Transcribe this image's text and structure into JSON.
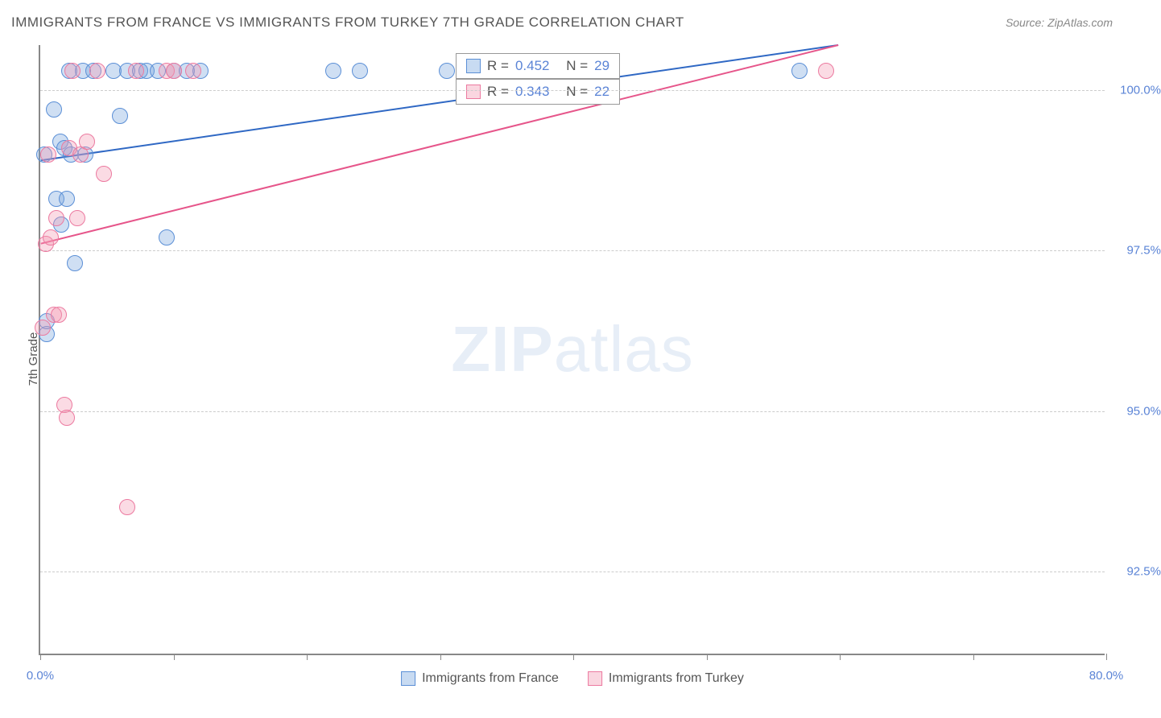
{
  "title": "IMMIGRANTS FROM FRANCE VS IMMIGRANTS FROM TURKEY 7TH GRADE CORRELATION CHART",
  "source": "Source: ZipAtlas.com",
  "ylabel": "7th Grade",
  "watermark_bold": "ZIP",
  "watermark_light": "atlas",
  "chart": {
    "type": "scatter-with-regression",
    "background": "#ffffff",
    "axis_color": "#888888",
    "grid_color": "#cccccc",
    "label_color": "#5b84d6",
    "text_color": "#555555",
    "title_fontsize": 17,
    "label_fontsize": 15,
    "tick_fontsize": 15,
    "xlim": [
      0,
      80
    ],
    "ylim": [
      91.2,
      100.7
    ],
    "y_gridlines": [
      92.5,
      95.0,
      97.5,
      100.0
    ],
    "y_tick_labels": [
      "92.5%",
      "95.0%",
      "97.5%",
      "100.0%"
    ],
    "x_ticks": [
      0,
      10,
      20,
      30,
      40,
      50,
      60,
      70,
      80
    ],
    "x_tick_labels": {
      "0": "0.0%",
      "80": "80.0%"
    },
    "marker_radius": 10,
    "series": [
      {
        "name": "Immigrants from France",
        "color_fill": "rgba(118,164,222,0.35)",
        "color_stroke": "#5b8fd6",
        "line_color": "#2f68c4",
        "line_width": 2,
        "R": 0.452,
        "N": 29,
        "regression": {
          "x1": 0,
          "y1": 98.9,
          "x2": 60,
          "y2": 100.7
        },
        "points": [
          {
            "x": 0.3,
            "y": 99.0
          },
          {
            "x": 0.5,
            "y": 96.2
          },
          {
            "x": 0.5,
            "y": 96.4
          },
          {
            "x": 1.0,
            "y": 99.7
          },
          {
            "x": 1.2,
            "y": 98.3
          },
          {
            "x": 1.5,
            "y": 99.2
          },
          {
            "x": 1.6,
            "y": 97.9
          },
          {
            "x": 1.8,
            "y": 99.1
          },
          {
            "x": 2.0,
            "y": 98.3
          },
          {
            "x": 2.2,
            "y": 100.3
          },
          {
            "x": 2.3,
            "y": 99.0
          },
          {
            "x": 2.6,
            "y": 97.3
          },
          {
            "x": 3.2,
            "y": 100.3
          },
          {
            "x": 3.4,
            "y": 99.0
          },
          {
            "x": 4.0,
            "y": 100.3
          },
          {
            "x": 5.5,
            "y": 100.3
          },
          {
            "x": 6.0,
            "y": 99.6
          },
          {
            "x": 6.5,
            "y": 100.3
          },
          {
            "x": 7.5,
            "y": 100.3
          },
          {
            "x": 8.0,
            "y": 100.3
          },
          {
            "x": 8.8,
            "y": 100.3
          },
          {
            "x": 9.5,
            "y": 97.7
          },
          {
            "x": 10.0,
            "y": 100.3
          },
          {
            "x": 11.0,
            "y": 100.3
          },
          {
            "x": 12.0,
            "y": 100.3
          },
          {
            "x": 22.0,
            "y": 100.3
          },
          {
            "x": 24.0,
            "y": 100.3
          },
          {
            "x": 30.5,
            "y": 100.3
          },
          {
            "x": 57.0,
            "y": 100.3
          }
        ]
      },
      {
        "name": "Immigrants from Turkey",
        "color_fill": "rgba(243,153,177,0.35)",
        "color_stroke": "#ec7aa0",
        "line_color": "#e6558a",
        "line_width": 2,
        "R": 0.343,
        "N": 22,
        "regression": {
          "x1": 0,
          "y1": 97.6,
          "x2": 60,
          "y2": 100.7
        },
        "points": [
          {
            "x": 0.2,
            "y": 96.3
          },
          {
            "x": 0.4,
            "y": 97.6
          },
          {
            "x": 0.6,
            "y": 99.0
          },
          {
            "x": 0.8,
            "y": 97.7
          },
          {
            "x": 1.0,
            "y": 96.5
          },
          {
            "x": 1.2,
            "y": 98.0
          },
          {
            "x": 1.4,
            "y": 96.5
          },
          {
            "x": 1.8,
            "y": 95.1
          },
          {
            "x": 2.0,
            "y": 94.9
          },
          {
            "x": 2.2,
            "y": 99.1
          },
          {
            "x": 2.4,
            "y": 100.3
          },
          {
            "x": 2.8,
            "y": 98.0
          },
          {
            "x": 3.0,
            "y": 99.0
          },
          {
            "x": 3.5,
            "y": 99.2
          },
          {
            "x": 4.3,
            "y": 100.3
          },
          {
            "x": 4.8,
            "y": 98.7
          },
          {
            "x": 6.5,
            "y": 93.5
          },
          {
            "x": 7.2,
            "y": 100.3
          },
          {
            "x": 9.5,
            "y": 100.3
          },
          {
            "x": 10.0,
            "y": 100.3
          },
          {
            "x": 11.5,
            "y": 100.3
          },
          {
            "x": 59.0,
            "y": 100.3
          }
        ]
      }
    ]
  },
  "legend_top": [
    {
      "swatch": "blue",
      "R_label": "R =",
      "R": "0.452",
      "N_label": "N =",
      "N": "29"
    },
    {
      "swatch": "pink",
      "R_label": "R =",
      "R": "0.343",
      "N_label": "N =",
      "N": "22"
    }
  ],
  "legend_bottom": [
    {
      "swatch": "blue",
      "label": "Immigrants from France"
    },
    {
      "swatch": "pink",
      "label": "Immigrants from Turkey"
    }
  ]
}
